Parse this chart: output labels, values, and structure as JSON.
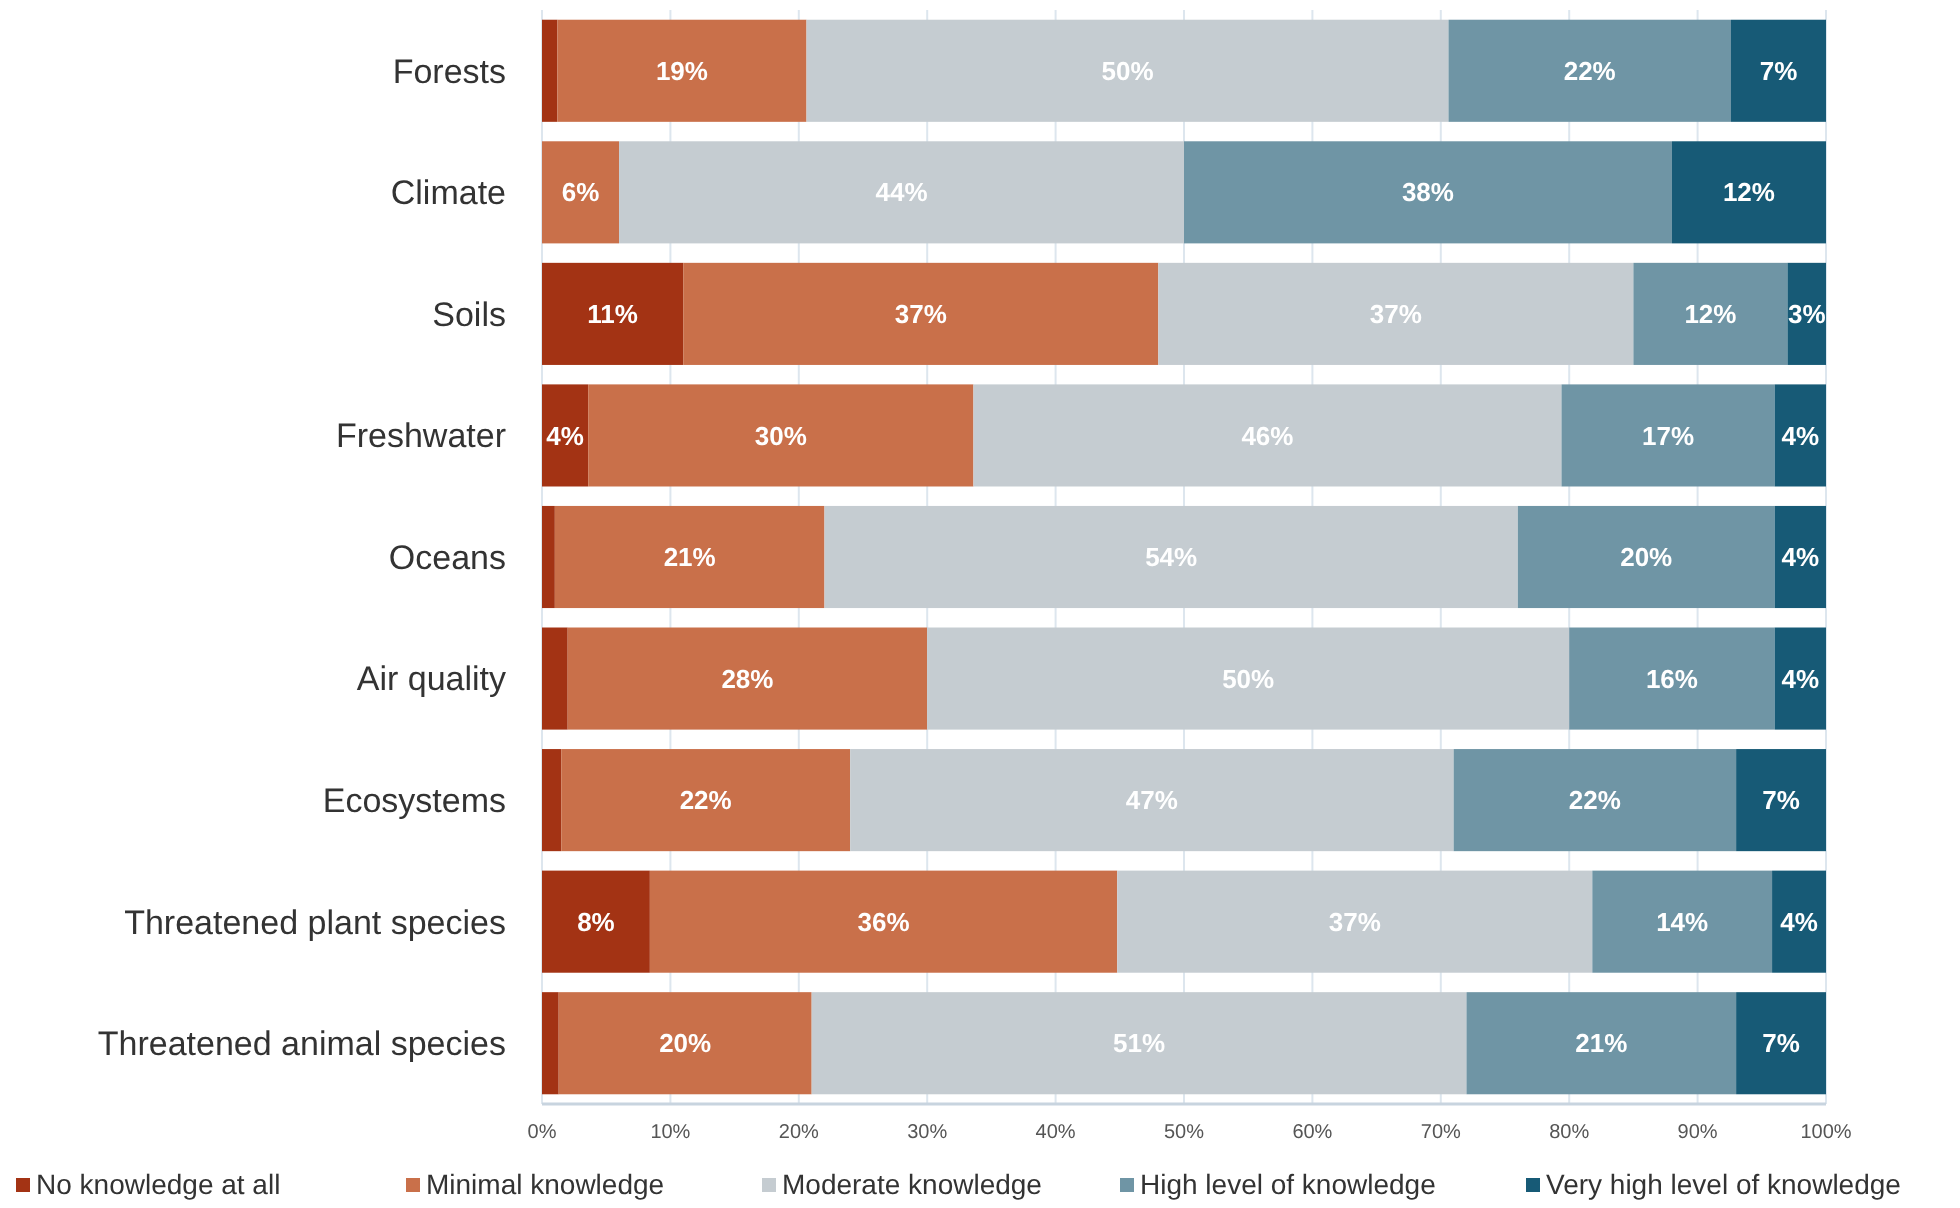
{
  "chart_data": {
    "type": "bar",
    "orientation": "horizontal",
    "stacked": true,
    "categories": [
      "Forests",
      "Climate",
      "Soils",
      "Freshwater",
      "Oceans",
      "Air quality",
      "Ecosystems",
      "Threatened plant species",
      "Threatened animal species"
    ],
    "series": [
      {
        "name": "No knowledge at all",
        "color": "#a33314",
        "values": [
          1.2,
          0,
          11,
          3.6,
          1,
          2,
          1.5,
          8.4,
          1.3
        ],
        "value_labels": [
          null,
          null,
          "11%",
          "4%",
          null,
          null,
          null,
          "8%",
          null
        ]
      },
      {
        "name": "Minimal knowledge",
        "color": "#c9704a",
        "values": [
          19.4,
          6,
          37,
          30,
          21,
          28,
          22.5,
          36.4,
          19.7
        ],
        "value_labels": [
          "19%",
          "6%",
          "37%",
          "30%",
          "21%",
          "28%",
          "22%",
          "36%",
          "20%"
        ]
      },
      {
        "name": "Moderate knowledge",
        "color": "#c5ccd1",
        "values": [
          50,
          44,
          37,
          45.8,
          54,
          50,
          47,
          37,
          51
        ],
        "value_labels": [
          "50%",
          "44%",
          "37%",
          "46%",
          "54%",
          "50%",
          "47%",
          "37%",
          "51%"
        ]
      },
      {
        "name": "High level of knowledge",
        "color": "#6f95a5",
        "values": [
          22,
          38,
          12,
          16.6,
          20,
          16,
          22,
          14,
          21
        ],
        "value_labels": [
          "22%",
          "38%",
          "12%",
          "17%",
          "20%",
          "16%",
          "22%",
          "14%",
          "21%"
        ]
      },
      {
        "name": "Very high level of knowledge",
        "color": "#175a76",
        "values": [
          7.4,
          12,
          3,
          4,
          4,
          4,
          7,
          4.2,
          7
        ],
        "value_labels": [
          "7%",
          "12%",
          "3%",
          "4%",
          "4%",
          "4%",
          "7%",
          "4%",
          "7%"
        ]
      }
    ],
    "xlim": [
      0,
      100
    ],
    "xticks": [
      {
        "value": 0,
        "label": "0%"
      },
      {
        "value": 10,
        "label": "10%"
      },
      {
        "value": 20,
        "label": "20%"
      },
      {
        "value": 30,
        "label": "30%"
      },
      {
        "value": 40,
        "label": "40%"
      },
      {
        "value": 50,
        "label": "50%"
      },
      {
        "value": 60,
        "label": "60%"
      },
      {
        "value": 70,
        "label": "70%"
      },
      {
        "value": 80,
        "label": "80%"
      },
      {
        "value": 90,
        "label": "90%"
      },
      {
        "value": 100,
        "label": "100%"
      }
    ],
    "grid": "x",
    "legend": "bottom"
  }
}
